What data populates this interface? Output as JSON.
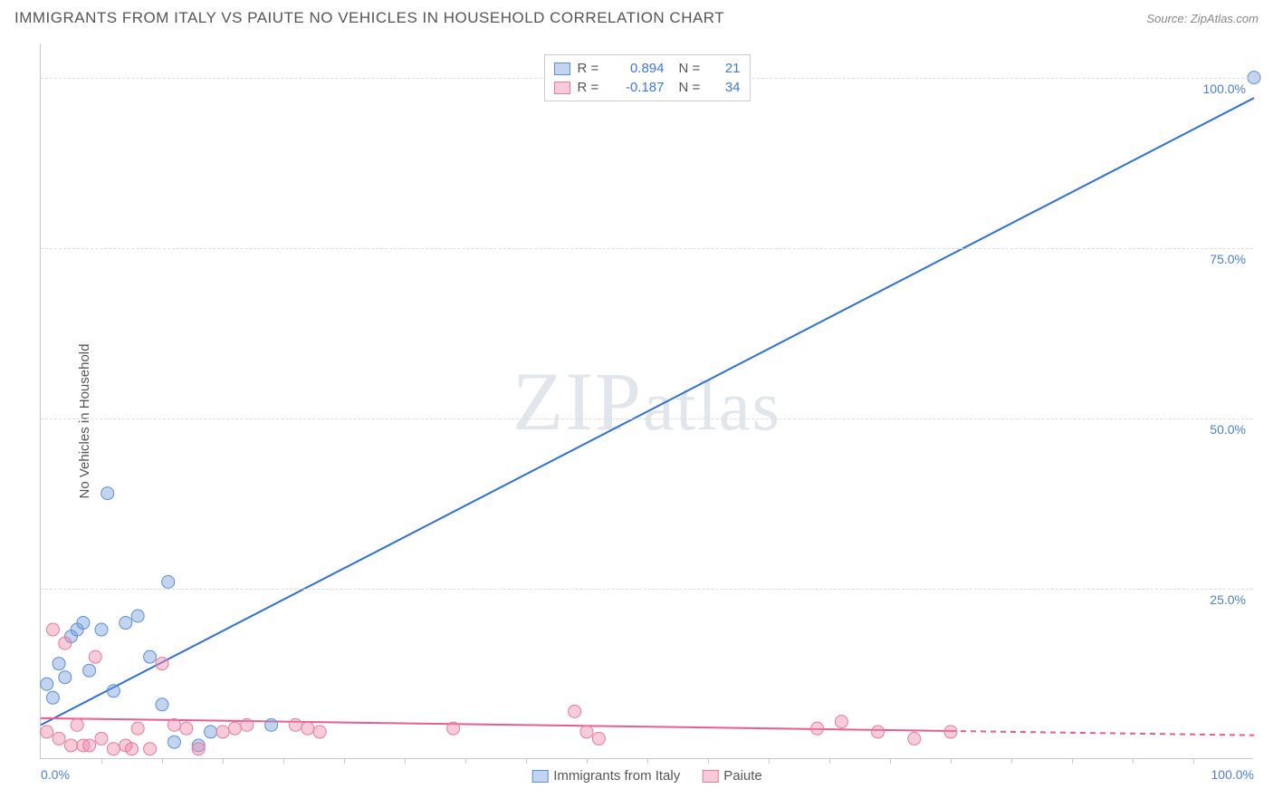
{
  "header": {
    "title": "IMMIGRANTS FROM ITALY VS PAIUTE NO VEHICLES IN HOUSEHOLD CORRELATION CHART",
    "source_prefix": "Source: ",
    "source_name": "ZipAtlas.com"
  },
  "watermark": "ZIPatlas",
  "chart": {
    "type": "scatter",
    "y_axis_title": "No Vehicles in Household",
    "xlim": [
      0,
      100
    ],
    "ylim": [
      0,
      105
    ],
    "x_ticks": [
      0,
      25,
      50,
      75,
      100
    ],
    "x_tick_labels": [
      "0.0%",
      "",
      "",
      "",
      "100.0%"
    ],
    "y_ticks": [
      25,
      50,
      75,
      100
    ],
    "y_tick_labels": [
      "25.0%",
      "50.0%",
      "75.0%",
      "100.0%"
    ],
    "grid_color": "#dddddd",
    "axis_color": "#c8c8c8",
    "tick_label_color": "#4a7fd8",
    "background_color": "#ffffff",
    "x_minor_ticks": [
      5,
      10,
      15,
      20,
      25,
      30,
      35,
      40,
      45,
      50,
      55,
      60,
      65,
      70,
      75,
      80,
      85,
      90,
      95
    ],
    "series": [
      {
        "id": "italy",
        "label": "Immigrants from Italy",
        "fill": "rgba(120,160,220,0.45)",
        "stroke": "#5b8fd6",
        "line_color": "#2e6fd8",
        "line_width": 2,
        "marker_radius": 7,
        "R": "0.894",
        "N": "21",
        "stat_color": "#3b78e7",
        "trend": {
          "x1": 0,
          "y1": 5,
          "x2": 100,
          "y2": 97,
          "dash_from_x": null
        },
        "points": [
          [
            0.5,
            11
          ],
          [
            1,
            9
          ],
          [
            1.5,
            14
          ],
          [
            2,
            12
          ],
          [
            2.5,
            18
          ],
          [
            3,
            19
          ],
          [
            3.5,
            20
          ],
          [
            4,
            13
          ],
          [
            5,
            19
          ],
          [
            5.5,
            39
          ],
          [
            6,
            10
          ],
          [
            7,
            20
          ],
          [
            8,
            21
          ],
          [
            9,
            15
          ],
          [
            10,
            8
          ],
          [
            10.5,
            26
          ],
          [
            11,
            2.5
          ],
          [
            13,
            2
          ],
          [
            14,
            4
          ],
          [
            19,
            5
          ],
          [
            100,
            100
          ]
        ]
      },
      {
        "id": "paiute",
        "label": "Paiute",
        "fill": "rgba(240,140,170,0.45)",
        "stroke": "#e77aa0",
        "line_color": "#e85c90",
        "line_width": 2,
        "marker_radius": 7,
        "R": "-0.187",
        "N": "34",
        "stat_color": "#3b78e7",
        "trend": {
          "x1": 0,
          "y1": 6,
          "x2": 100,
          "y2": 3.5,
          "dash_from_x": 75
        },
        "points": [
          [
            0.5,
            4
          ],
          [
            1,
            19
          ],
          [
            1.5,
            3
          ],
          [
            2,
            17
          ],
          [
            2.5,
            2
          ],
          [
            3,
            5
          ],
          [
            3.5,
            2
          ],
          [
            4,
            2
          ],
          [
            4.5,
            15
          ],
          [
            5,
            3
          ],
          [
            6,
            1.5
          ],
          [
            7,
            2
          ],
          [
            7.5,
            1.5
          ],
          [
            8,
            4.5
          ],
          [
            9,
            1.5
          ],
          [
            10,
            14
          ],
          [
            11,
            5
          ],
          [
            12,
            4.5
          ],
          [
            13,
            1.5
          ],
          [
            15,
            4
          ],
          [
            16,
            4.5
          ],
          [
            17,
            5
          ],
          [
            21,
            5
          ],
          [
            22,
            4.5
          ],
          [
            23,
            4
          ],
          [
            34,
            4.5
          ],
          [
            44,
            7
          ],
          [
            45,
            4
          ],
          [
            46,
            3
          ],
          [
            64,
            4.5
          ],
          [
            66,
            5.5
          ],
          [
            69,
            4
          ],
          [
            72,
            3
          ],
          [
            75,
            4
          ]
        ]
      }
    ],
    "legend_bottom": [
      {
        "series": "italy"
      },
      {
        "series": "paiute"
      }
    ]
  }
}
